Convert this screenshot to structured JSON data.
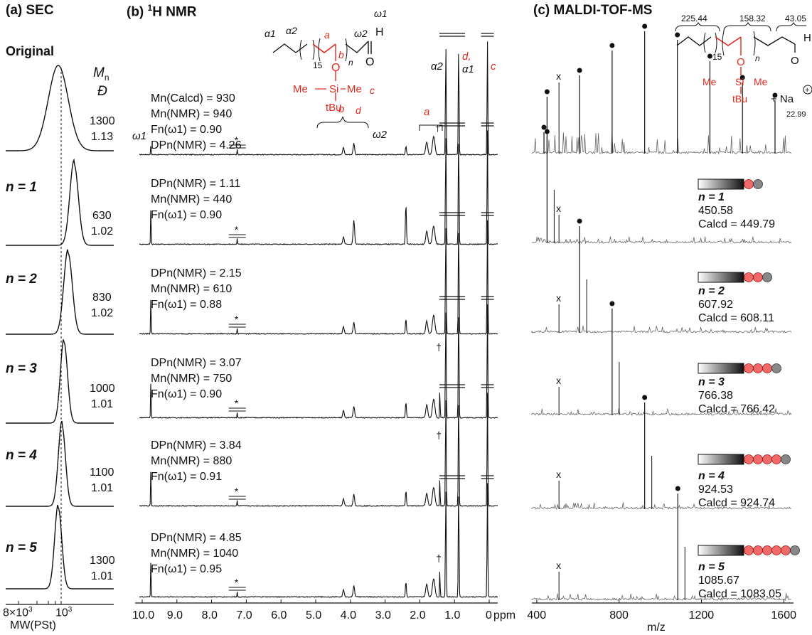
{
  "panels": {
    "sec_title": "(a) SEC",
    "nmr_title": "(b) ",
    "nmr_title_sup": "1",
    "nmr_title_rest": "H NMR",
    "ms_title": "(c) MALDI-TOF-MS"
  },
  "sec": {
    "original_label": "Original",
    "col_mn": "M",
    "col_mn_sub": "n",
    "col_d": "Đ",
    "xtick_left": "8×10",
    "xtick_left_sup": "3",
    "xtick_right": "10",
    "xtick_right_sup": "3",
    "xlabel": "MW(PSt)",
    "rows": [
      {
        "label": "",
        "mn": "1300",
        "d": "1.13"
      },
      {
        "label": "n = 1",
        "mn": "630",
        "d": "1.02"
      },
      {
        "label": "n = 2",
        "mn": "830",
        "d": "1.02"
      },
      {
        "label": "n = 3",
        "mn": "1000",
        "d": "1.01"
      },
      {
        "label": "n = 4",
        "mn": "1100",
        "d": "1.01"
      },
      {
        "label": "n = 5",
        "mn": "1300",
        "d": "1.01"
      }
    ]
  },
  "nmr": {
    "original_stats": [
      "Mn(Calcd) = 930",
      "Mn(NMR) = 940",
      "Fn(ω1) = 0.90",
      "DPn(NMR) = 4.26"
    ],
    "rows": [
      {
        "dp": "DPn(NMR) = 1.11",
        "mn": "Mn(NMR) = 440",
        "fn": "Fn(ω1) = 0.90"
      },
      {
        "dp": "DPn(NMR) = 2.15",
        "mn": "Mn(NMR) = 610",
        "fn": "Fn(ω1) = 0.88"
      },
      {
        "dp": "DPn(NMR) = 3.07",
        "mn": "Mn(NMR) = 750",
        "fn": "Fn(ω1) = 0.90"
      },
      {
        "dp": "DPn(NMR) = 3.84",
        "mn": "Mn(NMR) = 880",
        "fn": "Fn(ω1) = 0.91"
      },
      {
        "dp": "DPn(NMR) = 4.85",
        "mn": "Mn(NMR) = 1040",
        "fn": "Fn(ω1) = 0.95"
      }
    ],
    "peak_labels": {
      "w1": "ω1",
      "w2": "ω2",
      "a": "a",
      "b": "b",
      "c": "c",
      "d": "d,",
      "a1": "α1",
      "a2": "α2",
      "star": "*",
      "dagger": "†"
    },
    "structure": {
      "a1": "α1",
      "a2": "α2",
      "w2": "ω2",
      "w1": "ω1",
      "h": "H",
      "o": "O",
      "n": "n",
      "sub15": "15",
      "a": "a",
      "b": "b",
      "c": "c",
      "d": "d",
      "me_left": "Me",
      "si": "Si",
      "me_right": "Me",
      "tbu": "tBu",
      "o_red": "O"
    }
  },
  "ms": {
    "fragment_labels": [
      "225.44",
      "158.32",
      "43.05"
    ],
    "plus_na": "+ Na",
    "na_mass": "22.99",
    "structure": {
      "sub15": "15",
      "n": "n",
      "o": "O",
      "h": "H",
      "me_left": "Me",
      "si": "Si",
      "me_right": "Me",
      "tbu": "tBu",
      "o_red": "O"
    },
    "rows": [
      {
        "n": "n = 1",
        "found": "450.58",
        "calcd": "Calcd = 449.79"
      },
      {
        "n": "n = 2",
        "found": "607.92",
        "calcd": "Calcd = 608.11"
      },
      {
        "n": "n = 3",
        "found": "766.38",
        "calcd": "Calcd = 766.42"
      },
      {
        "n": "n = 4",
        "found": "924.53",
        "calcd": "Calcd = 924.74"
      },
      {
        "n": "n = 5",
        "found": "1085.67",
        "calcd": "Calcd = 1083.05"
      }
    ],
    "x_marker": "x"
  },
  "chart_data": [
    {
      "type": "line",
      "panel": "(a) SEC",
      "xlabel": "MW(PSt)",
      "x_ticks": [
        "8×10^3",
        "10^3"
      ],
      "series": [
        {
          "name": "Original",
          "peak_mw": 1300,
          "dispersity": 1.13
        },
        {
          "name": "n = 1",
          "peak_mw": 630,
          "dispersity": 1.02
        },
        {
          "name": "n = 2",
          "peak_mw": 830,
          "dispersity": 1.02
        },
        {
          "name": "n = 3",
          "peak_mw": 1000,
          "dispersity": 1.01
        },
        {
          "name": "n = 4",
          "peak_mw": 1100,
          "dispersity": 1.01
        },
        {
          "name": "n = 5",
          "peak_mw": 1300,
          "dispersity": 1.01
        }
      ]
    },
    {
      "type": "line",
      "panel": "(b) 1H NMR",
      "xlabel": "ppm",
      "xlim": [
        10.0,
        0
      ],
      "x_ticks": [
        "10.0",
        "9.0",
        "8.0",
        "7.0",
        "6.0",
        "5.0",
        "4.0",
        "3.0",
        "2.0",
        "1.0",
        "0"
      ],
      "peaks_ppm": {
        "w1": 9.75,
        "star": 7.26,
        "b": 3.9,
        "w2": 2.4,
        "a": 1.6,
        "a2": 1.25,
        "d_a1": 0.88,
        "c": 0.05
      }
    },
    {
      "type": "line",
      "panel": "(c) MALDI-TOF-MS",
      "xlabel": "m/z",
      "xlim": [
        390,
        1640
      ],
      "x_ticks": [
        "400",
        "800",
        "1200",
        "1600"
      ],
      "original_dots_mz": [
        435,
        450,
        608,
        766,
        924,
        1083,
        1241,
        1399,
        1557
      ],
      "series": [
        {
          "name": "n = 1",
          "dot_mz": 450.58
        },
        {
          "name": "n = 2",
          "dot_mz": 607.92
        },
        {
          "name": "n = 3",
          "dot_mz": 766.38
        },
        {
          "name": "n = 4",
          "dot_mz": 924.53
        },
        {
          "name": "n = 5",
          "dot_mz": 1085.67
        }
      ]
    }
  ]
}
